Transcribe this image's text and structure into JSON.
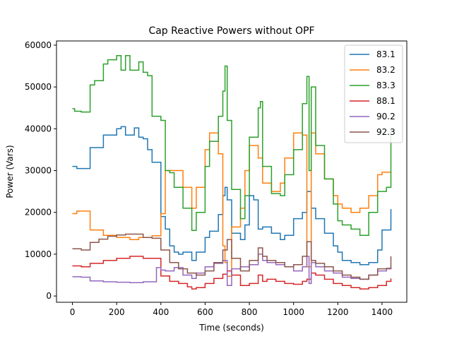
{
  "chart_data": {
    "type": "line",
    "title": "Cap Reactive Powers without OPF",
    "xlabel": "Time (seconds)",
    "ylabel": "Power (Vars)",
    "xlim": [
      -72,
      1512
    ],
    "ylim": [
      -1500,
      61000
    ],
    "xticks": [
      0,
      200,
      400,
      600,
      800,
      1000,
      1200,
      1400
    ],
    "yticks": [
      0,
      10000,
      20000,
      30000,
      40000,
      50000,
      60000
    ],
    "grid": false,
    "legend_position": "top-right",
    "step": true,
    "series": [
      {
        "name": "83.1",
        "color": "#1f77b4",
        "x": [
          0,
          20,
          80,
          140,
          200,
          220,
          240,
          280,
          300,
          320,
          340,
          360,
          400,
          420,
          440,
          460,
          480,
          500,
          540,
          560,
          600,
          620,
          660,
          680,
          690,
          700,
          720,
          760,
          780,
          800,
          820,
          840,
          860,
          900,
          940,
          960,
          1000,
          1040,
          1060,
          1080,
          1100,
          1140,
          1180,
          1200,
          1220,
          1260,
          1300,
          1340,
          1380,
          1400,
          1440
        ],
        "y": [
          31000,
          30500,
          35500,
          38500,
          40000,
          40500,
          38500,
          40200,
          38000,
          37600,
          35000,
          32000,
          19000,
          16000,
          12000,
          10500,
          10000,
          10500,
          8500,
          10500,
          14000,
          15500,
          19500,
          24000,
          26000,
          23000,
          15000,
          13500,
          17000,
          24000,
          23000,
          16000,
          16500,
          15000,
          13500,
          14500,
          18500,
          20000,
          25000,
          21000,
          18500,
          15000,
          12000,
          10500,
          8500,
          8000,
          7500,
          8000,
          11000,
          15800,
          20800
        ]
      },
      {
        "name": "83.2",
        "color": "#ff7f0e",
        "x": [
          0,
          20,
          80,
          140,
          200,
          260,
          300,
          360,
          400,
          420,
          440,
          500,
          540,
          560,
          600,
          620,
          660,
          680,
          690,
          700,
          720,
          760,
          780,
          800,
          840,
          860,
          900,
          940,
          960,
          1000,
          1040,
          1060,
          1080,
          1100,
          1140,
          1180,
          1200,
          1220,
          1260,
          1300,
          1340,
          1380,
          1400,
          1440
        ],
        "y": [
          19700,
          20300,
          15800,
          14500,
          14000,
          13500,
          14000,
          14400,
          19700,
          30000,
          30000,
          26000,
          21000,
          26000,
          35000,
          39000,
          34000,
          12000,
          8000,
          4700,
          16500,
          21000,
          30000,
          36000,
          33000,
          27000,
          25000,
          27000,
          33000,
          39000,
          38500,
          7000,
          39000,
          34000,
          28000,
          24000,
          22000,
          21000,
          20000,
          21000,
          24000,
          29000,
          29600,
          29800
        ]
      },
      {
        "name": "83.3",
        "color": "#2ca02c",
        "x": [
          0,
          10,
          40,
          80,
          100,
          140,
          160,
          200,
          220,
          240,
          260,
          300,
          320,
          340,
          360,
          400,
          420,
          440,
          460,
          500,
          540,
          560,
          600,
          620,
          660,
          680,
          690,
          700,
          720,
          760,
          780,
          800,
          840,
          850,
          860,
          900,
          940,
          960,
          1000,
          1040,
          1060,
          1070,
          1080,
          1100,
          1140,
          1180,
          1200,
          1220,
          1260,
          1300,
          1340,
          1380,
          1420,
          1440
        ],
        "y": [
          44800,
          44200,
          44000,
          50500,
          51500,
          55500,
          56500,
          57500,
          54000,
          57500,
          54000,
          56000,
          53500,
          52700,
          43000,
          42000,
          30000,
          29500,
          26000,
          21000,
          15700,
          20000,
          31000,
          37000,
          43000,
          49000,
          55000,
          42000,
          25500,
          18500,
          24000,
          38000,
          45000,
          46500,
          31000,
          24500,
          24000,
          29000,
          35000,
          46000,
          52500,
          30000,
          50000,
          36000,
          28000,
          22000,
          18000,
          17000,
          16000,
          14500,
          20000,
          25000,
          26000,
          40000
        ]
      },
      {
        "name": "88.1",
        "color": "#d62728",
        "x": [
          0,
          40,
          80,
          140,
          200,
          260,
          320,
          400,
          440,
          480,
          520,
          540,
          560,
          600,
          640,
          680,
          700,
          720,
          760,
          800,
          840,
          860,
          880,
          920,
          960,
          1000,
          1040,
          1060,
          1080,
          1100,
          1140,
          1180,
          1220,
          1260,
          1300,
          1340,
          1380,
          1420,
          1440
        ],
        "y": [
          7200,
          7000,
          7800,
          8500,
          9000,
          9500,
          9000,
          4800,
          3500,
          3000,
          2200,
          1700,
          2000,
          3000,
          4200,
          5200,
          6000,
          5000,
          2500,
          3000,
          5000,
          3500,
          4000,
          3500,
          3000,
          2800,
          3500,
          4000,
          5500,
          5000,
          4000,
          3000,
          2500,
          2000,
          1700,
          2000,
          2500,
          3500,
          4200
        ]
      },
      {
        "name": "90.2",
        "color": "#9467bd",
        "x": [
          0,
          40,
          80,
          140,
          200,
          260,
          320,
          380,
          400,
          420,
          460,
          500,
          540,
          560,
          600,
          640,
          680,
          700,
          720,
          760,
          800,
          840,
          860,
          880,
          920,
          960,
          1000,
          1040,
          1060,
          1070,
          1080,
          1100,
          1140,
          1180,
          1220,
          1260,
          1300,
          1340,
          1380,
          1420,
          1440
        ],
        "y": [
          4600,
          4500,
          3600,
          3400,
          3300,
          3200,
          3400,
          6800,
          6200,
          6000,
          6800,
          5000,
          4200,
          5500,
          7000,
          7800,
          8500,
          2500,
          6500,
          7000,
          7500,
          10000,
          8500,
          8000,
          7500,
          7000,
          6000,
          7000,
          9500,
          3000,
          8000,
          7000,
          6000,
          5500,
          4500,
          4200,
          4000,
          5000,
          6000,
          6500,
          7000
        ]
      },
      {
        "name": "92.3",
        "color": "#8c564b",
        "x": [
          0,
          40,
          80,
          120,
          160,
          200,
          240,
          280,
          320,
          360,
          400,
          440,
          480,
          520,
          560,
          600,
          640,
          680,
          700,
          720,
          760,
          800,
          840,
          860,
          880,
          920,
          960,
          1000,
          1040,
          1060,
          1080,
          1100,
          1140,
          1180,
          1220,
          1260,
          1300,
          1340,
          1380,
          1420,
          1440
        ],
        "y": [
          11300,
          11000,
          12800,
          13600,
          14300,
          14600,
          14800,
          14800,
          14000,
          13800,
          11000,
          8000,
          6500,
          5500,
          5000,
          6000,
          8000,
          11000,
          13500,
          9000,
          6000,
          8500,
          11500,
          9500,
          8500,
          8000,
          7000,
          7500,
          9500,
          13000,
          8500,
          7800,
          7000,
          6000,
          5000,
          4500,
          4000,
          5000,
          6500,
          6600,
          9500
        ]
      }
    ]
  }
}
